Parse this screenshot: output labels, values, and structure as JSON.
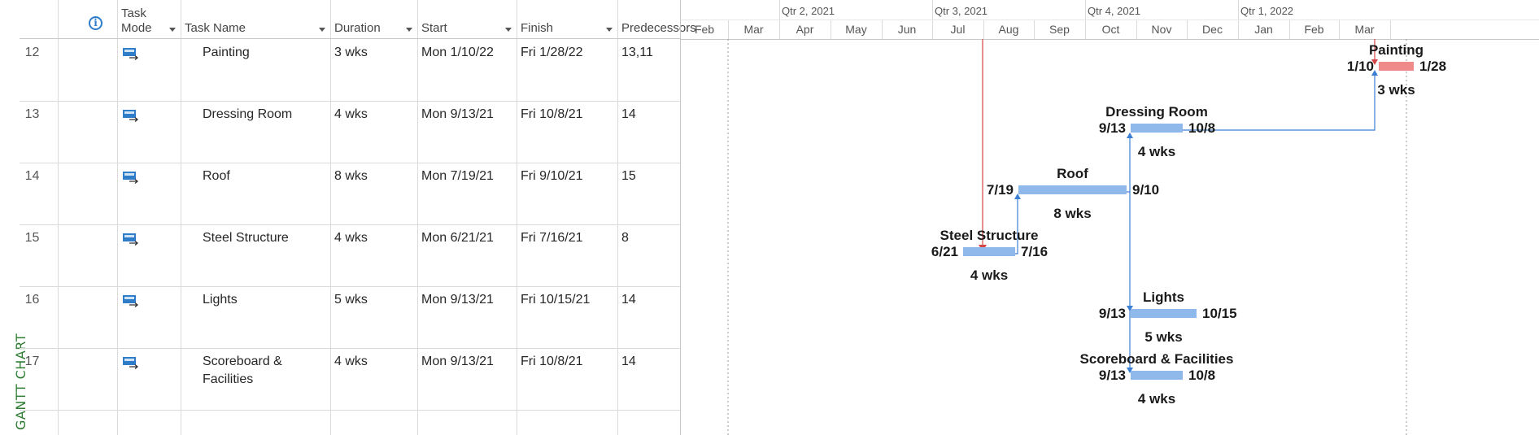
{
  "sidebar": {
    "view_label": "GANTT CHART"
  },
  "table": {
    "headers": {
      "info": "i",
      "task_mode": "Task Mode",
      "task_name": "Task Name",
      "duration": "Duration",
      "start": "Start",
      "finish": "Finish",
      "predecessors": "Predecessors"
    },
    "rows": [
      {
        "id": "12",
        "name": "Painting",
        "duration": "3 wks",
        "start": "Mon 1/10/22",
        "finish": "Fri 1/28/22",
        "predecessors": "13,11"
      },
      {
        "id": "13",
        "name": "Dressing Room",
        "duration": "4 wks",
        "start": "Mon 9/13/21",
        "finish": "Fri 10/8/21",
        "predecessors": "14"
      },
      {
        "id": "14",
        "name": "Roof",
        "duration": "8 wks",
        "start": "Mon 7/19/21",
        "finish": "Fri 9/10/21",
        "predecessors": "15"
      },
      {
        "id": "15",
        "name": "Steel Structure",
        "duration": "4 wks",
        "start": "Mon 6/21/21",
        "finish": "Fri 7/16/21",
        "predecessors": "8"
      },
      {
        "id": "16",
        "name": "Lights",
        "duration": "5 wks",
        "start": "Mon 9/13/21",
        "finish": "Fri 10/15/21",
        "predecessors": "14"
      },
      {
        "id": "17",
        "name": "Scoreboard & Facilities",
        "duration": "4 wks",
        "start": "Mon 9/13/21",
        "finish": "Fri 10/8/21",
        "predecessors": "14"
      }
    ]
  },
  "timeline": {
    "quarters": [
      "Qtr 2, 2021",
      "Qtr 3, 2021",
      "Qtr 4, 2021",
      "Qtr 1, 2022"
    ],
    "months": [
      "Feb",
      "Mar",
      "Apr",
      "May",
      "Jun",
      "Jul",
      "Aug",
      "Sep",
      "Oct",
      "Nov",
      "Dec",
      "Jan",
      "Feb",
      "Mar"
    ]
  },
  "gantt": {
    "bars": [
      {
        "task": "Painting",
        "start_label": "1/10",
        "finish_label": "1/28",
        "duration_label": "3 wks",
        "critical": true
      },
      {
        "task": "Dressing Room",
        "start_label": "9/13",
        "finish_label": "10/8",
        "duration_label": "4 wks",
        "critical": false
      },
      {
        "task": "Roof",
        "start_label": "7/19",
        "finish_label": "9/10",
        "duration_label": "8 wks",
        "critical": false
      },
      {
        "task": "Steel Structure",
        "start_label": "6/21",
        "finish_label": "7/16",
        "duration_label": "4 wks",
        "critical": false
      },
      {
        "task": "Lights",
        "start_label": "9/13",
        "finish_label": "10/15",
        "duration_label": "5 wks",
        "critical": false
      },
      {
        "task": "Scoreboard & Facilities",
        "start_label": "9/13",
        "finish_label": "10/8",
        "duration_label": "4 wks",
        "critical": false
      }
    ],
    "colors": {
      "normal_bar": "#8fb9ea",
      "critical_bar": "#ee8a8a",
      "link": "#3b7fd4",
      "critical_link": "#d64545",
      "status_line": "#d64545"
    }
  }
}
